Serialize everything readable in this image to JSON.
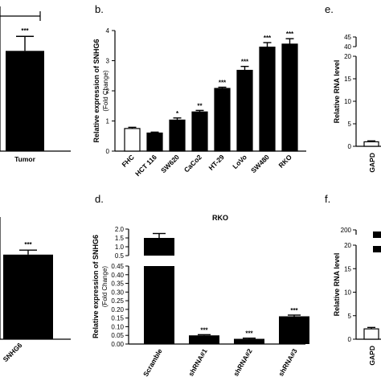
{
  "panels": {
    "b": "b.",
    "d": "d.",
    "e": "e.",
    "f": "f."
  },
  "chart_data": [
    {
      "id": "a-top",
      "type": "bar",
      "categories": [
        "Tumor"
      ],
      "values": [
        2.9
      ],
      "errors": [
        0.42
      ],
      "significance": [
        "***"
      ],
      "title": "",
      "xlabel": "",
      "ylabel": "",
      "ylim": [
        0,
        4
      ]
    },
    {
      "id": "b",
      "type": "bar",
      "title": "",
      "ylabel": "Relative expression of SNHG6",
      "ylabel2": "(Fold Change)",
      "xlabel": "",
      "ylim": [
        0,
        4
      ],
      "yticks": [
        0,
        1,
        2,
        3,
        4
      ],
      "categories": [
        "FHC",
        "HCT 116",
        "SW620",
        "CaCo2",
        "HT-29",
        "LoVo",
        "SW480",
        "RKO"
      ],
      "values": [
        0.75,
        0.6,
        1.03,
        1.3,
        2.08,
        2.68,
        3.45,
        3.55
      ],
      "errors": [
        0.04,
        0.03,
        0.07,
        0.05,
        0.04,
        0.13,
        0.15,
        0.18
      ],
      "significance": [
        "",
        "",
        "*",
        "**",
        "***",
        "***",
        "***",
        "***"
      ],
      "fills": [
        "#ffffff",
        "#000000",
        "#000000",
        "#000000",
        "#000000",
        "#000000",
        "#000000",
        "#000000"
      ]
    },
    {
      "id": "c",
      "type": "bar",
      "categories": [
        "SNHG6"
      ],
      "values": [
        0.95
      ],
      "errors": [
        0.05
      ],
      "significance": [
        "***"
      ],
      "title": "",
      "xlabel": "",
      "ylabel": "",
      "ylim": [
        0,
        1.3
      ]
    },
    {
      "id": "d",
      "type": "bar",
      "title": "RKO",
      "ylabel": "Relative expression of SNHG6",
      "ylabel2": "(Fold Change)",
      "xlabel": "",
      "ylim": [
        0,
        2.0
      ],
      "yaxis_break": [
        0.5,
        1.0
      ],
      "yticks": [
        "0.00",
        "0.05",
        "0.10",
        "0.15",
        "0.20",
        "0.25",
        "0.30",
        "0.35",
        "0.40",
        "0.45",
        "0.5",
        "1.0",
        "1.5",
        "2.0"
      ],
      "categories": [
        "Scramble",
        "shRNA#1",
        "shRNA#2",
        "shRNA#3"
      ],
      "values": [
        1.5,
        0.05,
        0.03,
        0.16
      ],
      "errors": [
        0.25,
        0.004,
        0.004,
        0.007
      ],
      "significance": [
        "",
        "***",
        "***",
        "***"
      ]
    },
    {
      "id": "e",
      "type": "bar",
      "ylabel": "Relative RNA level",
      "title": "",
      "xlabel": "",
      "ylim": [
        0,
        45
      ],
      "yaxis_break": [
        20,
        40
      ],
      "yticks": [
        "0",
        "5",
        "10",
        "15",
        "20",
        "40",
        "45"
      ],
      "categories": [
        "GAPD"
      ],
      "values": [
        1.0
      ],
      "errors": [
        0.2
      ]
    },
    {
      "id": "f",
      "type": "bar",
      "ylabel": "Relative RNA level",
      "title": "",
      "xlabel": "",
      "ylim": [
        0,
        200
      ],
      "yaxis_break": [
        20,
        200
      ],
      "yticks": [
        "0",
        "5",
        "10",
        "15",
        "20",
        "200"
      ],
      "categories": [
        "GAPD"
      ],
      "values": [
        2.2
      ],
      "errors": [
        0.3
      ]
    }
  ]
}
